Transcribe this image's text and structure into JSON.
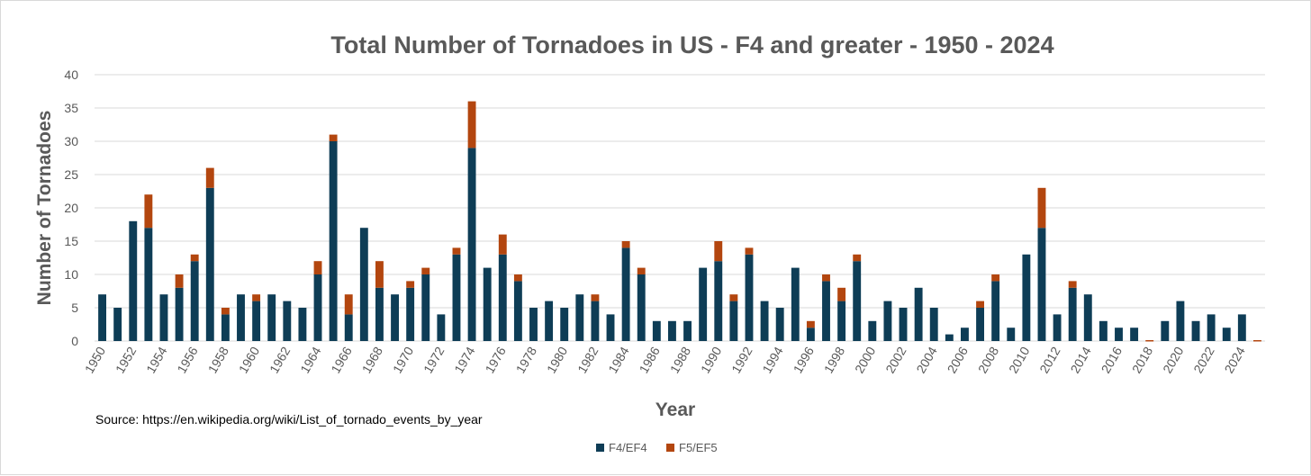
{
  "chart_data": {
    "type": "bar",
    "stacked": true,
    "title": "Total Number of Tornadoes in US - F4 and greater - 1950 - 2024",
    "xlabel": "Year",
    "ylabel": "Number of Tornadoes",
    "ylim": [
      0,
      40
    ],
    "yticks": [
      0,
      5,
      10,
      15,
      20,
      25,
      30,
      35,
      40
    ],
    "grid": true,
    "legend_position": "bottom",
    "x": [
      1950,
      1951,
      1952,
      1953,
      1954,
      1955,
      1956,
      1957,
      1958,
      1959,
      1960,
      1961,
      1962,
      1963,
      1964,
      1965,
      1966,
      1967,
      1968,
      1969,
      1970,
      1971,
      1972,
      1973,
      1974,
      1975,
      1976,
      1977,
      1978,
      1979,
      1980,
      1981,
      1982,
      1983,
      1984,
      1985,
      1986,
      1987,
      1988,
      1989,
      1990,
      1991,
      1992,
      1993,
      1994,
      1995,
      1996,
      1997,
      1998,
      1999,
      2000,
      2001,
      2002,
      2003,
      2004,
      2005,
      2006,
      2007,
      2008,
      2009,
      2010,
      2011,
      2012,
      2013,
      2014,
      2015,
      2016,
      2017,
      2018,
      2019,
      2020,
      2021,
      2022,
      2023,
      2024,
      2025
    ],
    "xtick_labels": [
      "1950",
      "1952",
      "1954",
      "1956",
      "1958",
      "1960",
      "1962",
      "1964",
      "1966",
      "1968",
      "1970",
      "1972",
      "1974",
      "1976",
      "1978",
      "1980",
      "1982",
      "1984",
      "1986",
      "1988",
      "1990",
      "1992",
      "1994",
      "1996",
      "1998",
      "2000",
      "2002",
      "2004",
      "2006",
      "2008",
      "2010",
      "2012",
      "2014",
      "2016",
      "2018",
      "2020",
      "2022",
      "2024"
    ],
    "series": [
      {
        "name": "F4/EF4",
        "color": "#0e3d56",
        "values": [
          7,
          5,
          18,
          17,
          7,
          8,
          12,
          23,
          4,
          7,
          6,
          7,
          6,
          5,
          10,
          30,
          4,
          17,
          8,
          7,
          8,
          10,
          4,
          13,
          29,
          11,
          13,
          9,
          5,
          6,
          5,
          7,
          6,
          4,
          14,
          10,
          3,
          3,
          3,
          11,
          12,
          6,
          13,
          6,
          5,
          11,
          2,
          9,
          6,
          12,
          3,
          6,
          5,
          8,
          5,
          1,
          2,
          5,
          9,
          2,
          13,
          17,
          4,
          8,
          7,
          3,
          2,
          2,
          0,
          3,
          6,
          3,
          4,
          2,
          4,
          0
        ]
      },
      {
        "name": "F5/EF5",
        "color": "#b3460f",
        "values": [
          0,
          0,
          0,
          5,
          0,
          2,
          1,
          3,
          1,
          0,
          1,
          0,
          0,
          0,
          2,
          1,
          3,
          0,
          4,
          0,
          1,
          1,
          0,
          1,
          7,
          0,
          3,
          1,
          0,
          0,
          0,
          0,
          1,
          0,
          1,
          1,
          0,
          0,
          0,
          0,
          3,
          1,
          1,
          0,
          0,
          0,
          1,
          1,
          2,
          1,
          0,
          0,
          0,
          0,
          0,
          0,
          0,
          1,
          1,
          0,
          0,
          6,
          0,
          1,
          0,
          0,
          0,
          0,
          0,
          0,
          0,
          0,
          0,
          0,
          0,
          0
        ]
      }
    ],
    "annotations": [
      "Source: https://en.wikipedia.org/wiki/List_of_tornado_events_by_year"
    ]
  }
}
